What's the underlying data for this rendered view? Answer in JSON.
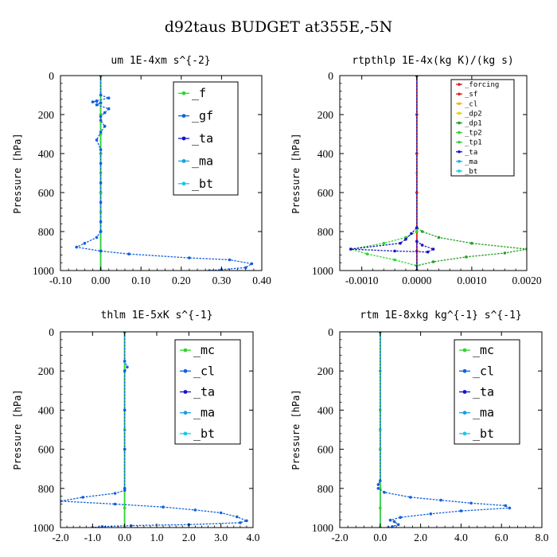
{
  "figure_title": "d92taus  BUDGET at355E,-5N",
  "colors": {
    "green": "#2fd62f",
    "blue": "#1060e0",
    "red": "#e02020",
    "darkblue": "#1414c8",
    "cyan": "#19c8e6",
    "orange": "#ffaa00",
    "yellow": "#e6d200",
    "darkgreen": "#20a020",
    "skyblue": "#14a0e6",
    "lightblue": "#18b4dc"
  },
  "chart_data": [
    {
      "type": "line",
      "title": "um   1E-4xm s^{-2}",
      "ylabel": "Pressure [hPa]",
      "xlabel": "",
      "xlim": [
        -0.1,
        0.4
      ],
      "ylim": [
        1000,
        0
      ],
      "xticks": [
        "-0.10",
        "0.00",
        "0.10",
        "0.20",
        "0.30",
        "0.40"
      ],
      "xtick_values": [
        -0.1,
        0.0,
        0.1,
        0.2,
        0.3,
        0.4
      ],
      "yticks": [
        "0",
        "200",
        "400",
        "600",
        "800",
        "1000"
      ],
      "ytick_values": [
        0,
        200,
        400,
        600,
        800,
        1000
      ],
      "legend_position": "top-right",
      "legend": [
        "_f",
        "_gf",
        "_ta",
        "_ma",
        "_bt"
      ],
      "series": [
        {
          "name": "_f",
          "color": "green",
          "points": [
            [
              0,
              0
            ],
            [
              0,
              100
            ],
            [
              0,
              200
            ],
            [
              0,
              300
            ],
            [
              0,
              400
            ],
            [
              0,
              500
            ],
            [
              0,
              600
            ],
            [
              0,
              700
            ],
            [
              0,
              800
            ],
            [
              0,
              900
            ],
            [
              0,
              1000
            ]
          ]
        },
        {
          "name": "_gf",
          "color": "blue",
          "points": [
            [
              0,
              0
            ],
            [
              0,
              100
            ],
            [
              0.02,
              115
            ],
            [
              -0.01,
              130
            ],
            [
              -0.02,
              135
            ],
            [
              0,
              140
            ],
            [
              -0.01,
              150
            ],
            [
              0.02,
              170
            ],
            [
              0.01,
              190
            ],
            [
              0,
              210
            ],
            [
              0,
              230
            ],
            [
              0.01,
              260
            ],
            [
              0,
              290
            ],
            [
              -0.01,
              330
            ],
            [
              0,
              380
            ],
            [
              0,
              450
            ],
            [
              0,
              550
            ],
            [
              0,
              650
            ],
            [
              0,
              750
            ],
            [
              0,
              800
            ],
            [
              -0.01,
              830
            ],
            [
              -0.04,
              860
            ],
            [
              -0.06,
              880
            ],
            [
              0,
              900
            ],
            [
              0.07,
              915
            ],
            [
              0.22,
              935
            ],
            [
              0.32,
              945
            ],
            [
              0.375,
              965
            ],
            [
              0.36,
              985
            ],
            [
              0.3,
              995
            ],
            [
              0.27,
              1000
            ]
          ]
        },
        {
          "name": "_ta",
          "color": "darkblue",
          "points": [
            [
              0,
              0
            ],
            [
              0,
              200
            ],
            [
              0,
              400
            ],
            [
              0,
              600
            ],
            [
              0,
              800
            ],
            [
              0,
              900
            ],
            [
              0,
              1000
            ]
          ]
        },
        {
          "name": "_ma",
          "color": "skyblue",
          "points": [
            [
              0,
              0
            ],
            [
              0,
              200
            ],
            [
              0,
              400
            ],
            [
              0,
              600
            ],
            [
              0,
              800
            ],
            [
              0,
              900
            ],
            [
              0,
              1000
            ]
          ]
        },
        {
          "name": "_bt",
          "color": "cyan",
          "points": [
            [
              0,
              0
            ],
            [
              0,
              200
            ],
            [
              0,
              400
            ],
            [
              0,
              600
            ],
            [
              0,
              800
            ],
            [
              0,
              900
            ],
            [
              0,
              1000
            ]
          ]
        }
      ]
    },
    {
      "type": "line",
      "title": "rtpthlp   1E-4x(kg K)/(kg s)",
      "ylabel": "Pressure [hPa]",
      "xlabel": "",
      "xlim": [
        -0.0014,
        0.002
      ],
      "ylim": [
        1000,
        0
      ],
      "xticks": [
        "-0.0010",
        "0.0000",
        "0.0010",
        "0.0020"
      ],
      "xtick_values": [
        -0.001,
        0.0,
        0.001,
        0.002
      ],
      "yticks": [
        "0",
        "200",
        "400",
        "600",
        "800",
        "1000"
      ],
      "ytick_values": [
        0,
        200,
        400,
        600,
        800,
        1000
      ],
      "legend_position": "top-right",
      "legend": [
        "_forcing",
        "_sf",
        "_cl",
        "_dp2",
        "_dp1",
        "_tp2",
        "_tp1",
        "_ta",
        "_ma",
        "_bt"
      ],
      "series": [
        {
          "name": "_forcing",
          "color": "red",
          "points": [
            [
              0,
              0
            ],
            [
              0,
              200
            ],
            [
              0,
              400
            ],
            [
              0,
              600
            ],
            [
              0,
              800
            ],
            [
              0,
              900
            ],
            [
              0,
              1000
            ]
          ]
        },
        {
          "name": "_sf",
          "color": "red",
          "points": [
            [
              0,
              0
            ],
            [
              0,
              200
            ],
            [
              0,
              400
            ],
            [
              0,
              600
            ],
            [
              0,
              800
            ],
            [
              0,
              900
            ],
            [
              0,
              1000
            ]
          ]
        },
        {
          "name": "_cl",
          "color": "orange",
          "points": [
            [
              0,
              0
            ],
            [
              0,
              500
            ],
            [
              0,
              1000
            ]
          ]
        },
        {
          "name": "_dp2",
          "color": "yellow",
          "points": [
            [
              0,
              0
            ],
            [
              0,
              500
            ],
            [
              0,
              1000
            ]
          ]
        },
        {
          "name": "_dp1",
          "color": "darkgreen",
          "points": [
            [
              0,
              0
            ],
            [
              0,
              780
            ],
            [
              0.0001,
              800
            ],
            [
              0.0004,
              830
            ],
            [
              0.001,
              860
            ],
            [
              0.002,
              890
            ],
            [
              0.0016,
              910
            ],
            [
              0.0009,
              930
            ],
            [
              0.0003,
              955
            ],
            [
              0,
              975
            ],
            [
              0,
              1000
            ]
          ]
        },
        {
          "name": "_tp2",
          "color": "green",
          "points": [
            [
              0,
              0
            ],
            [
              0,
              800
            ],
            [
              -0.0002,
              830
            ],
            [
              -0.0006,
              860
            ],
            [
              -0.0012,
              890
            ],
            [
              -0.0009,
              915
            ],
            [
              -0.0004,
              945
            ],
            [
              0,
              975
            ],
            [
              0,
              1000
            ]
          ]
        },
        {
          "name": "_tp1",
          "color": "green",
          "points": [
            [
              0,
              0
            ],
            [
              0,
              1000
            ]
          ]
        },
        {
          "name": "_ta",
          "color": "darkblue",
          "points": [
            [
              0,
              0
            ],
            [
              0,
              780
            ],
            [
              -0.0001,
              810
            ],
            [
              -0.0002,
              840
            ],
            [
              -0.0003,
              860
            ],
            [
              -0.0012,
              890
            ],
            [
              -0.0004,
              900
            ],
            [
              0.0002,
              905
            ],
            [
              0.0003,
              890
            ],
            [
              0.0001,
              870
            ],
            [
              0,
              850
            ],
            [
              0,
              1000
            ]
          ]
        },
        {
          "name": "_ma",
          "color": "lightblue",
          "points": [
            [
              0,
              0
            ],
            [
              0,
              1000
            ]
          ]
        },
        {
          "name": "_bt",
          "color": "cyan",
          "points": [
            [
              0,
              0
            ],
            [
              0,
              1000
            ]
          ]
        }
      ]
    },
    {
      "type": "line",
      "title": "thlm   1E-5xK s^{-1}",
      "ylabel": "Pressure [hPa]",
      "xlabel": "",
      "xlim": [
        -2.0,
        4.0
      ],
      "ylim": [
        1000,
        0
      ],
      "xticks": [
        "-2.0",
        "-1.0",
        "0.0",
        "1.0",
        "2.0",
        "3.0",
        "4.0"
      ],
      "xtick_values": [
        -2,
        -1,
        0,
        1,
        2,
        3,
        4
      ],
      "yticks": [
        "0",
        "200",
        "400",
        "600",
        "800",
        "1000"
      ],
      "ytick_values": [
        0,
        200,
        400,
        600,
        800,
        1000
      ],
      "legend_position": "top-right",
      "legend": [
        "_mc",
        "_cl",
        "_ta",
        "_ma",
        "_bt"
      ],
      "series": [
        {
          "name": "_mc",
          "color": "green",
          "points": [
            [
              0,
              0
            ],
            [
              0,
              200
            ],
            [
              0,
              400
            ],
            [
              0,
              600
            ],
            [
              0,
              800
            ],
            [
              0,
              900
            ],
            [
              0,
              1000
            ]
          ]
        },
        {
          "name": "_cl",
          "color": "blue",
          "points": [
            [
              0,
              0
            ],
            [
              0,
              150
            ],
            [
              0.08,
              180
            ],
            [
              0,
              200
            ],
            [
              0,
              400
            ],
            [
              0,
              600
            ],
            [
              0,
              800
            ],
            [
              0,
              810
            ],
            [
              -0.3,
              825
            ],
            [
              -1.3,
              845
            ],
            [
              -2.0,
              865
            ],
            [
              -0.3,
              880
            ],
            [
              1.2,
              895
            ],
            [
              2.2,
              910
            ],
            [
              3.0,
              925
            ],
            [
              3.5,
              945
            ],
            [
              3.8,
              965
            ],
            [
              3.6,
              975
            ],
            [
              2.0,
              985
            ],
            [
              0.2,
              990
            ],
            [
              -0.7,
              995
            ],
            [
              -1.0,
              1000
            ]
          ]
        },
        {
          "name": "_ta",
          "color": "darkblue",
          "points": [
            [
              0,
              0
            ],
            [
              0,
              500
            ],
            [
              0,
              1000
            ]
          ]
        },
        {
          "name": "_ma",
          "color": "skyblue",
          "points": [
            [
              0,
              0
            ],
            [
              0,
              500
            ],
            [
              0,
              1000
            ]
          ]
        },
        {
          "name": "_bt",
          "color": "cyan",
          "points": [
            [
              0,
              0
            ],
            [
              0,
              500
            ],
            [
              0,
              1000
            ]
          ]
        }
      ]
    },
    {
      "type": "line",
      "title": "rtm   1E-8xkg kg^{-1} s^{-1}",
      "ylabel": "Pressure [hPa]",
      "xlabel": "",
      "xlim": [
        -2.0,
        8.0
      ],
      "ylim": [
        1000,
        0
      ],
      "xticks": [
        "-2.0",
        "0.0",
        "2.0",
        "4.0",
        "6.0",
        "8.0"
      ],
      "xtick_values": [
        -2,
        0,
        2,
        4,
        6,
        8
      ],
      "yticks": [
        "0",
        "200",
        "400",
        "600",
        "800",
        "1000"
      ],
      "ytick_values": [
        0,
        200,
        400,
        600,
        800,
        1000
      ],
      "legend_position": "top-right",
      "legend": [
        "_mc",
        "_cl",
        "_ta",
        "_ma",
        "_bt"
      ],
      "series": [
        {
          "name": "_mc",
          "color": "green",
          "points": [
            [
              0,
              0
            ],
            [
              0,
              200
            ],
            [
              0,
              400
            ],
            [
              0,
              600
            ],
            [
              0,
              800
            ],
            [
              0,
              900
            ],
            [
              0,
              1000
            ]
          ]
        },
        {
          "name": "_cl",
          "color": "blue",
          "points": [
            [
              0,
              0
            ],
            [
              0,
              760
            ],
            [
              -0.1,
              780
            ],
            [
              -0.1,
              800
            ],
            [
              0.2,
              820
            ],
            [
              1.5,
              845
            ],
            [
              3.0,
              860
            ],
            [
              4.5,
              875
            ],
            [
              6.2,
              888
            ],
            [
              6.4,
              900
            ],
            [
              4.0,
              915
            ],
            [
              2.5,
              930
            ],
            [
              1.0,
              948
            ],
            [
              0.5,
              962
            ],
            [
              0.7,
              970
            ],
            [
              0.9,
              985
            ],
            [
              0.6,
              995
            ],
            [
              0.4,
              1000
            ]
          ]
        },
        {
          "name": "_ta",
          "color": "darkblue",
          "points": [
            [
              0,
              0
            ],
            [
              0,
              500
            ],
            [
              0,
              1000
            ]
          ]
        },
        {
          "name": "_ma",
          "color": "skyblue",
          "points": [
            [
              0,
              0
            ],
            [
              0,
              500
            ],
            [
              0,
              1000
            ]
          ]
        },
        {
          "name": "_bt",
          "color": "cyan",
          "points": [
            [
              0,
              0
            ],
            [
              0,
              500
            ],
            [
              0,
              1000
            ]
          ]
        }
      ]
    }
  ]
}
